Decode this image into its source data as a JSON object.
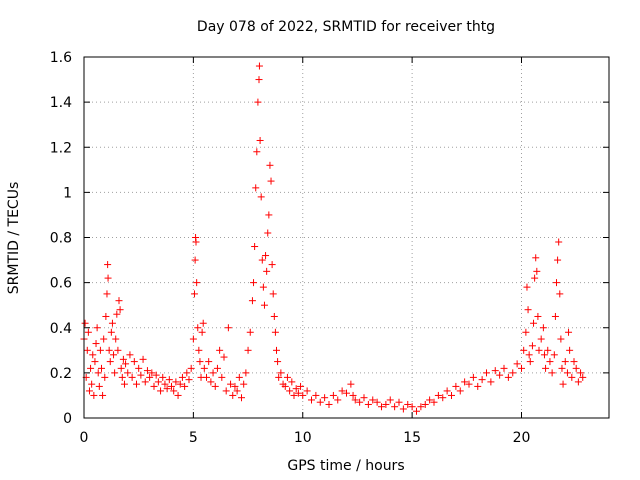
{
  "chart_data": {
    "type": "scatter",
    "title": "Day 078 of 2022, SRMTID for receiver thtg",
    "xlabel": "GPS time / hours",
    "ylabel": "SRMTID / TECUs",
    "xlim": [
      0,
      24
    ],
    "ylim": [
      0,
      1.6
    ],
    "xticks": [
      0,
      5,
      10,
      15,
      20
    ],
    "xtick_labels": [
      "0",
      "5",
      "10",
      "15",
      "20"
    ],
    "yticks": [
      0,
      0.2,
      0.4,
      0.6,
      0.8,
      1.0,
      1.2,
      1.4,
      1.6
    ],
    "ytick_labels": [
      "0",
      "0.2",
      "0.4",
      "0.6",
      "0.8",
      "1",
      "1.2",
      "1.4",
      "1.6"
    ],
    "grid": true,
    "marker": "+",
    "color": "#ff0000",
    "series": [
      {
        "name": "SRMTID",
        "points": [
          [
            0.0,
            0.35
          ],
          [
            0.05,
            0.42
          ],
          [
            0.1,
            0.18
          ],
          [
            0.15,
            0.3
          ],
          [
            0.2,
            0.38
          ],
          [
            0.25,
            0.12
          ],
          [
            0.3,
            0.22
          ],
          [
            0.35,
            0.15
          ],
          [
            0.4,
            0.28
          ],
          [
            0.45,
            0.1
          ],
          [
            0.5,
            0.25
          ],
          [
            0.55,
            0.33
          ],
          [
            0.6,
            0.4
          ],
          [
            0.65,
            0.2
          ],
          [
            0.7,
            0.14
          ],
          [
            0.75,
            0.3
          ],
          [
            0.8,
            0.22
          ],
          [
            0.85,
            0.1
          ],
          [
            0.9,
            0.35
          ],
          [
            0.95,
            0.18
          ],
          [
            1.0,
            0.45
          ],
          [
            1.05,
            0.55
          ],
          [
            1.08,
            0.68
          ],
          [
            1.1,
            0.62
          ],
          [
            1.15,
            0.3
          ],
          [
            1.2,
            0.25
          ],
          [
            1.25,
            0.38
          ],
          [
            1.3,
            0.42
          ],
          [
            1.35,
            0.28
          ],
          [
            1.4,
            0.2
          ],
          [
            1.45,
            0.35
          ],
          [
            1.5,
            0.46
          ],
          [
            1.55,
            0.3
          ],
          [
            1.6,
            0.52
          ],
          [
            1.65,
            0.48
          ],
          [
            1.7,
            0.22
          ],
          [
            1.75,
            0.18
          ],
          [
            1.8,
            0.26
          ],
          [
            1.85,
            0.15
          ],
          [
            1.9,
            0.24
          ],
          [
            2.0,
            0.2
          ],
          [
            2.1,
            0.28
          ],
          [
            2.2,
            0.18
          ],
          [
            2.3,
            0.25
          ],
          [
            2.4,
            0.15
          ],
          [
            2.5,
            0.22
          ],
          [
            2.6,
            0.19
          ],
          [
            2.7,
            0.26
          ],
          [
            2.8,
            0.16
          ],
          [
            2.9,
            0.21
          ],
          [
            3.0,
            0.18
          ],
          [
            3.1,
            0.2
          ],
          [
            3.2,
            0.14
          ],
          [
            3.3,
            0.19
          ],
          [
            3.4,
            0.16
          ],
          [
            3.5,
            0.12
          ],
          [
            3.6,
            0.18
          ],
          [
            3.7,
            0.15
          ],
          [
            3.8,
            0.13
          ],
          [
            3.9,
            0.17
          ],
          [
            4.0,
            0.14
          ],
          [
            4.1,
            0.12
          ],
          [
            4.2,
            0.16
          ],
          [
            4.3,
            0.1
          ],
          [
            4.4,
            0.15
          ],
          [
            4.5,
            0.18
          ],
          [
            4.6,
            0.14
          ],
          [
            4.7,
            0.2
          ],
          [
            4.8,
            0.17
          ],
          [
            4.9,
            0.22
          ],
          [
            5.0,
            0.35
          ],
          [
            5.05,
            0.55
          ],
          [
            5.08,
            0.7
          ],
          [
            5.1,
            0.8
          ],
          [
            5.12,
            0.78
          ],
          [
            5.15,
            0.6
          ],
          [
            5.2,
            0.4
          ],
          [
            5.25,
            0.3
          ],
          [
            5.3,
            0.25
          ],
          [
            5.35,
            0.18
          ],
          [
            5.4,
            0.38
          ],
          [
            5.45,
            0.42
          ],
          [
            5.5,
            0.22
          ],
          [
            5.6,
            0.18
          ],
          [
            5.7,
            0.25
          ],
          [
            5.8,
            0.16
          ],
          [
            5.9,
            0.2
          ],
          [
            6.0,
            0.14
          ],
          [
            6.1,
            0.22
          ],
          [
            6.2,
            0.3
          ],
          [
            6.3,
            0.18
          ],
          [
            6.4,
            0.27
          ],
          [
            6.5,
            0.12
          ],
          [
            6.6,
            0.4
          ],
          [
            6.7,
            0.15
          ],
          [
            6.8,
            0.1
          ],
          [
            6.9,
            0.14
          ],
          [
            7.0,
            0.12
          ],
          [
            7.1,
            0.18
          ],
          [
            7.2,
            0.09
          ],
          [
            7.3,
            0.15
          ],
          [
            7.4,
            0.2
          ],
          [
            7.5,
            0.3
          ],
          [
            7.6,
            0.38
          ],
          [
            7.7,
            0.52
          ],
          [
            7.75,
            0.6
          ],
          [
            7.8,
            0.76
          ],
          [
            7.85,
            1.02
          ],
          [
            7.9,
            1.18
          ],
          [
            7.95,
            1.4
          ],
          [
            8.0,
            1.5
          ],
          [
            8.02,
            1.56
          ],
          [
            8.05,
            1.23
          ],
          [
            8.1,
            0.98
          ],
          [
            8.15,
            0.7
          ],
          [
            8.2,
            0.58
          ],
          [
            8.25,
            0.5
          ],
          [
            8.3,
            0.72
          ],
          [
            8.35,
            0.65
          ],
          [
            8.4,
            0.82
          ],
          [
            8.45,
            0.9
          ],
          [
            8.5,
            1.12
          ],
          [
            8.55,
            1.05
          ],
          [
            8.6,
            0.68
          ],
          [
            8.65,
            0.55
          ],
          [
            8.7,
            0.45
          ],
          [
            8.75,
            0.38
          ],
          [
            8.8,
            0.3
          ],
          [
            8.85,
            0.25
          ],
          [
            8.9,
            0.18
          ],
          [
            9.0,
            0.2
          ],
          [
            9.1,
            0.15
          ],
          [
            9.2,
            0.14
          ],
          [
            9.3,
            0.18
          ],
          [
            9.4,
            0.12
          ],
          [
            9.5,
            0.16
          ],
          [
            9.6,
            0.1
          ],
          [
            9.7,
            0.13
          ],
          [
            9.8,
            0.11
          ],
          [
            9.9,
            0.14
          ],
          [
            10.0,
            0.1
          ],
          [
            10.2,
            0.12
          ],
          [
            10.4,
            0.08
          ],
          [
            10.6,
            0.1
          ],
          [
            10.8,
            0.07
          ],
          [
            11.0,
            0.09
          ],
          [
            11.2,
            0.06
          ],
          [
            11.4,
            0.1
          ],
          [
            11.6,
            0.08
          ],
          [
            11.8,
            0.12
          ],
          [
            12.0,
            0.11
          ],
          [
            12.2,
            0.15
          ],
          [
            12.3,
            0.1
          ],
          [
            12.4,
            0.08
          ],
          [
            12.6,
            0.07
          ],
          [
            12.8,
            0.09
          ],
          [
            13.0,
            0.06
          ],
          [
            13.2,
            0.08
          ],
          [
            13.4,
            0.07
          ],
          [
            13.6,
            0.05
          ],
          [
            13.8,
            0.06
          ],
          [
            14.0,
            0.08
          ],
          [
            14.2,
            0.05
          ],
          [
            14.4,
            0.07
          ],
          [
            14.6,
            0.04
          ],
          [
            14.8,
            0.06
          ],
          [
            15.0,
            0.05
          ],
          [
            15.2,
            0.03
          ],
          [
            15.4,
            0.05
          ],
          [
            15.6,
            0.06
          ],
          [
            15.8,
            0.08
          ],
          [
            16.0,
            0.07
          ],
          [
            16.2,
            0.1
          ],
          [
            16.4,
            0.09
          ],
          [
            16.6,
            0.12
          ],
          [
            16.8,
            0.1
          ],
          [
            17.0,
            0.14
          ],
          [
            17.2,
            0.12
          ],
          [
            17.4,
            0.16
          ],
          [
            17.6,
            0.15
          ],
          [
            17.8,
            0.18
          ],
          [
            18.0,
            0.14
          ],
          [
            18.2,
            0.17
          ],
          [
            18.4,
            0.2
          ],
          [
            18.6,
            0.16
          ],
          [
            18.8,
            0.21
          ],
          [
            19.0,
            0.19
          ],
          [
            19.2,
            0.22
          ],
          [
            19.4,
            0.18
          ],
          [
            19.6,
            0.2
          ],
          [
            19.8,
            0.24
          ],
          [
            20.0,
            0.22
          ],
          [
            20.1,
            0.3
          ],
          [
            20.2,
            0.38
          ],
          [
            20.25,
            0.58
          ],
          [
            20.3,
            0.48
          ],
          [
            20.35,
            0.28
          ],
          [
            20.4,
            0.25
          ],
          [
            20.5,
            0.32
          ],
          [
            20.55,
            0.42
          ],
          [
            20.6,
            0.62
          ],
          [
            20.65,
            0.71
          ],
          [
            20.7,
            0.65
          ],
          [
            20.75,
            0.45
          ],
          [
            20.8,
            0.3
          ],
          [
            20.9,
            0.35
          ],
          [
            21.0,
            0.4
          ],
          [
            21.05,
            0.28
          ],
          [
            21.1,
            0.22
          ],
          [
            21.2,
            0.3
          ],
          [
            21.3,
            0.25
          ],
          [
            21.4,
            0.2
          ],
          [
            21.5,
            0.28
          ],
          [
            21.55,
            0.45
          ],
          [
            21.6,
            0.6
          ],
          [
            21.65,
            0.7
          ],
          [
            21.7,
            0.78
          ],
          [
            21.75,
            0.55
          ],
          [
            21.8,
            0.35
          ],
          [
            21.85,
            0.22
          ],
          [
            21.9,
            0.15
          ],
          [
            22.0,
            0.25
          ],
          [
            22.1,
            0.2
          ],
          [
            22.15,
            0.38
          ],
          [
            22.2,
            0.3
          ],
          [
            22.3,
            0.18
          ],
          [
            22.4,
            0.25
          ],
          [
            22.5,
            0.22
          ],
          [
            22.6,
            0.16
          ],
          [
            22.7,
            0.2
          ],
          [
            22.8,
            0.18
          ]
        ]
      }
    ]
  }
}
